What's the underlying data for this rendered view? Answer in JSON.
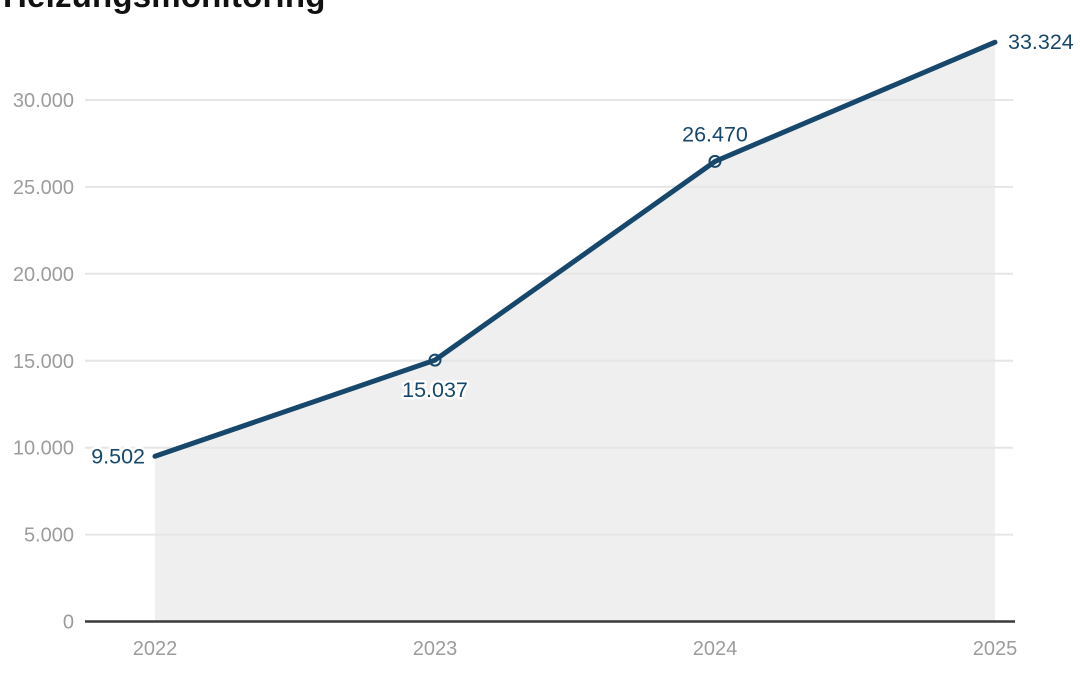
{
  "title": "Heizungsmonitoring",
  "colors": {
    "background": "#ffffff",
    "title_text": "#111111",
    "line": "#17486b",
    "area_fill": "#efefef",
    "gridline": "#e6e6e6",
    "axis_line": "#3a3a3a",
    "tick_text": "#9c9c9c",
    "value_label_text": "#17486b",
    "marker_fill": "#ffffff",
    "label_halo": "#ffffff"
  },
  "chart_data": {
    "type": "area",
    "title": "Heizungsmonitoring",
    "x": [
      "2022",
      "2023",
      "2024",
      "2025"
    ],
    "values": [
      9502,
      15037,
      26470,
      33324
    ],
    "value_labels": [
      "9.502",
      "15.037",
      "26.470",
      "33.324"
    ],
    "label_positions": [
      "left",
      "below",
      "above",
      "right"
    ],
    "markers": [
      false,
      true,
      true,
      false
    ],
    "xlabel": "",
    "ylabel": "",
    "ylim": [
      0,
      33500
    ],
    "yticks": [
      0,
      5000,
      10000,
      15000,
      20000,
      25000,
      30000
    ],
    "ytick_labels": [
      "0",
      "5.000",
      "10.000",
      "15.000",
      "20.000",
      "25.000",
      "30.000"
    ],
    "grid": "horizontal-only",
    "legend": "none"
  }
}
